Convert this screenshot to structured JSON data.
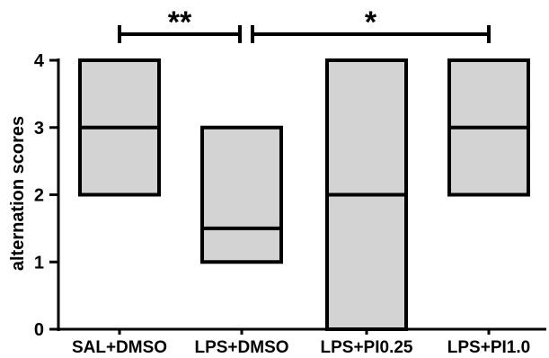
{
  "chart_data": {
    "type": "box",
    "title": "",
    "xlabel": "",
    "ylabel": "alternation scores",
    "ylim": [
      0,
      4
    ],
    "yticks": [
      0,
      1,
      2,
      3,
      4
    ],
    "grid": false,
    "categories": [
      "SAL+DMSO",
      "LPS+DMSO",
      "LPS+PI0.25",
      "LPS+PI1.0"
    ],
    "boxes": [
      {
        "q1": 2,
        "median": 3,
        "q3": 4
      },
      {
        "q1": 1,
        "median": 1.5,
        "q3": 3
      },
      {
        "q1": 0,
        "median": 2,
        "q3": 4
      },
      {
        "q1": 2,
        "median": 3,
        "q3": 4
      }
    ],
    "significance": [
      {
        "from": 0,
        "to": 1,
        "label": "**"
      },
      {
        "from": 1,
        "to": 3,
        "label": "*"
      }
    ],
    "box_fill": "#d3d3d3",
    "line_color": "#000000"
  }
}
